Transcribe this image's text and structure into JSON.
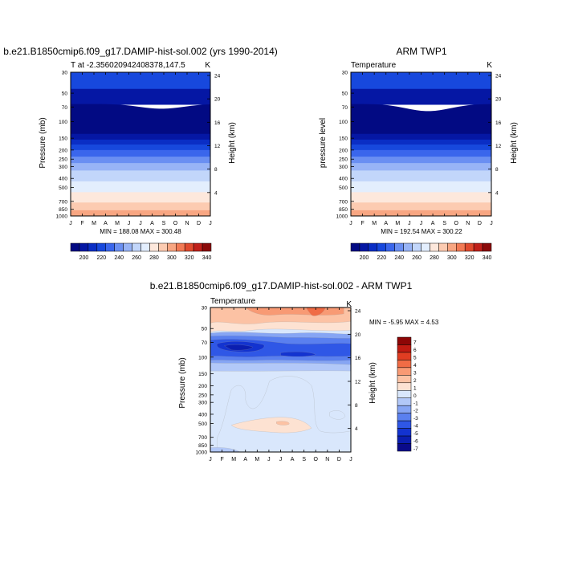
{
  "chart_data": [
    {
      "type": "heatmap",
      "title": "b.e21.B1850cmip6.f09_g17.DAMIP-hist-sol.002 (yrs 1990-2014)",
      "left_label": "T at -2.356020942408378,147.5",
      "right_label": "K",
      "ylabel": "Pressure (mb)",
      "y2label": "Height (km)",
      "x_ticks": [
        "J",
        "F",
        "M",
        "A",
        "M",
        "J",
        "J",
        "A",
        "S",
        "O",
        "N",
        "D",
        "J"
      ],
      "y_ticks": [
        "30",
        "50",
        "70",
        "100",
        "150",
        "200",
        "250",
        "300",
        "400",
        "500",
        "700",
        "850",
        "1000"
      ],
      "y2_ticks": [
        "24",
        "20",
        "16",
        "12",
        "8",
        "4"
      ],
      "minmax": "MIN = 188.08   MAX = 300.48",
      "colorbar_labels": [
        "200",
        "220",
        "240",
        "260",
        "280",
        "300",
        "320",
        "340"
      ],
      "y_scale": "log"
    },
    {
      "type": "heatmap",
      "title": "ARM TWP1",
      "left_label": "Temperature",
      "right_label": "K",
      "ylabel": "pressure level",
      "y2label": "Height (km)",
      "x_ticks": [
        "J",
        "F",
        "M",
        "A",
        "M",
        "J",
        "J",
        "A",
        "S",
        "O",
        "N",
        "D",
        "J"
      ],
      "y_ticks": [
        "30",
        "50",
        "70",
        "100",
        "150",
        "200",
        "250",
        "300",
        "400",
        "500",
        "700",
        "850",
        "1000"
      ],
      "y2_ticks": [
        "24",
        "20",
        "16",
        "12",
        "8",
        "4"
      ],
      "minmax": "MIN = 192.54   MAX = 300.22",
      "colorbar_labels": [
        "200",
        "220",
        "240",
        "260",
        "280",
        "300",
        "320",
        "340"
      ],
      "y_scale": "log"
    },
    {
      "type": "heatmap",
      "title": "b.e21.B1850cmip6.f09_g17.DAMIP-hist-sol.002 - ARM TWP1",
      "left_label": "Temperature",
      "right_label": "K",
      "ylabel": "Pressure (mb)",
      "y2label": "Height (km)",
      "x_ticks": [
        "J",
        "F",
        "M",
        "A",
        "M",
        "J",
        "J",
        "A",
        "S",
        "O",
        "N",
        "D",
        "J"
      ],
      "y_ticks": [
        "30",
        "50",
        "70",
        "100",
        "150",
        "200",
        "250",
        "300",
        "400",
        "500",
        "700",
        "850",
        "1000"
      ],
      "y2_ticks": [
        "24",
        "20",
        "16",
        "12",
        "8",
        "4"
      ],
      "minmax": "MIN =  -5.95   MAX =   4.53",
      "colorbar_labels": [
        "7",
        "6",
        "5",
        "4",
        "3",
        "2",
        "1",
        "0",
        "-1",
        "-2",
        "-3",
        "-4",
        "-5",
        "-6",
        "-7"
      ],
      "y_scale": "log"
    }
  ],
  "colors": {
    "abs_scale": [
      "#020a83",
      "#0517a4",
      "#0a2ec5",
      "#1748dd",
      "#3a66ec",
      "#6a8ff2",
      "#98b4f6",
      "#c2d6fa",
      "#e3eefd",
      "#fde8dc",
      "#fccbb1",
      "#f8a682",
      "#f27a55",
      "#e04a2e",
      "#c0201a",
      "#8b0a0a"
    ],
    "diff_scale": [
      "#0a0a8a",
      "#0b1eb0",
      "#1333d0",
      "#2f57e6",
      "#5a80ef",
      "#86a5f4",
      "#b2c8f8",
      "#d9e7fc",
      "#fde2d2",
      "#fcc2a4",
      "#f89a74",
      "#f06c45",
      "#e03d22",
      "#c01b12",
      "#8d0606"
    ]
  }
}
